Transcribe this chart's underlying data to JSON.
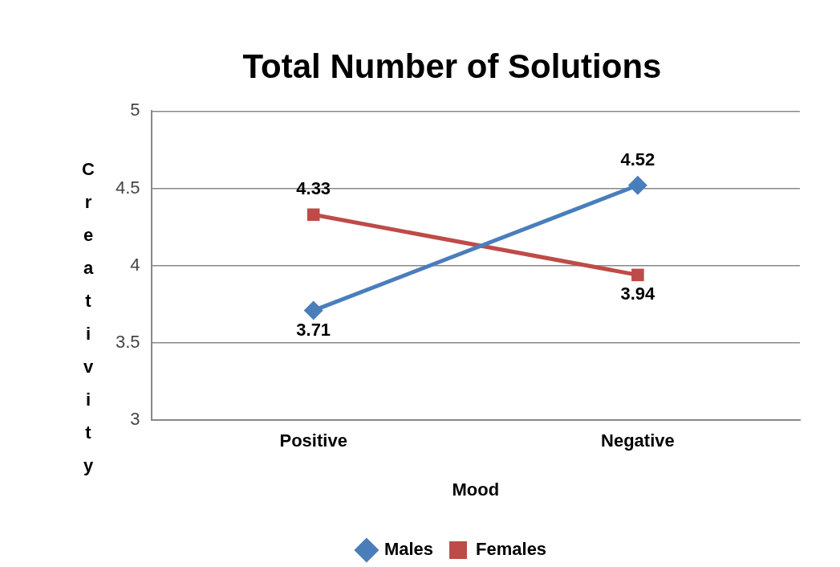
{
  "chart_data": {
    "type": "line",
    "title": "Total Number of Solutions",
    "xlabel": "Mood",
    "ylabel": "Creativity",
    "categories": [
      "Positive",
      "Negative"
    ],
    "series": [
      {
        "name": "Males",
        "color": "#4a7ebb",
        "values": [
          3.71,
          4.52
        ],
        "marker": "diamond"
      },
      {
        "name": "Females",
        "color": "#be4b48",
        "values": [
          4.33,
          3.94
        ],
        "marker": "square"
      }
    ],
    "ylim": [
      3,
      5
    ],
    "yticks": [
      3,
      3.5,
      4,
      4.5,
      5
    ],
    "grid": "y",
    "legend": "bottom",
    "data_labels": true,
    "line_style": "solid"
  }
}
